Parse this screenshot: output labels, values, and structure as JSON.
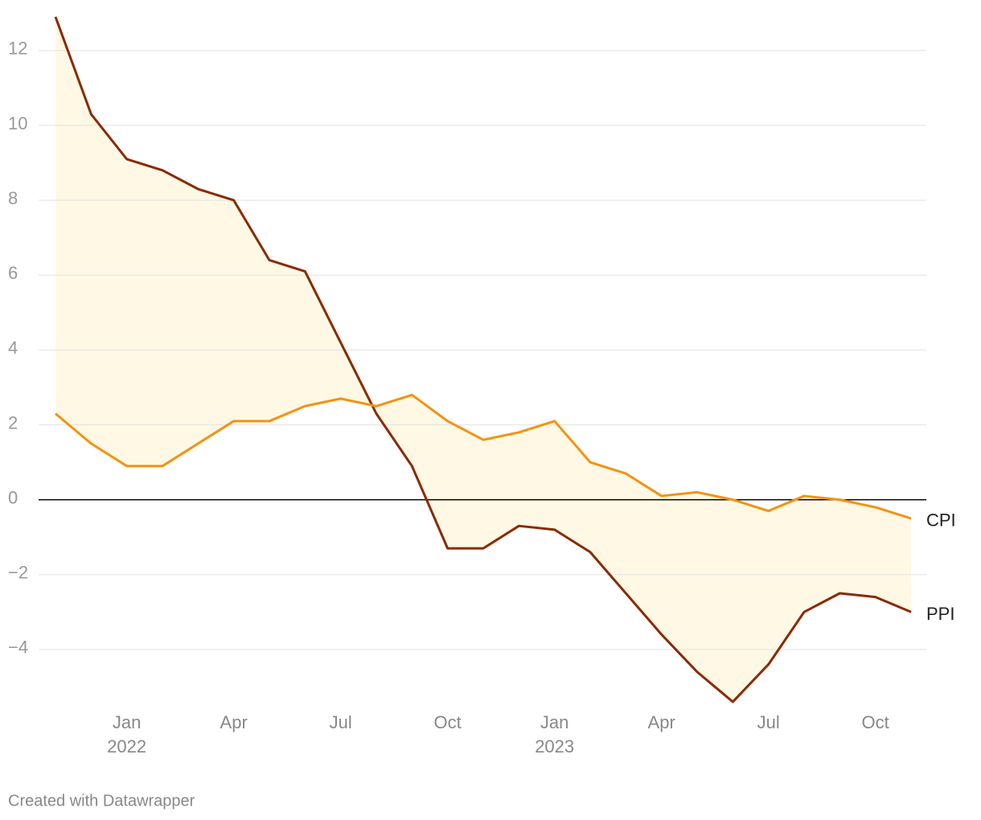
{
  "chart_data": {
    "type": "line",
    "categories": [
      null,
      null,
      "Jan",
      null,
      null,
      "Apr",
      null,
      null,
      "Jul",
      null,
      null,
      "Oct",
      null,
      null,
      "Jan",
      null,
      null,
      "Apr",
      null,
      null,
      "Jul",
      null,
      null,
      "Oct",
      null
    ],
    "category_years": [
      null,
      null,
      "2022",
      null,
      null,
      null,
      null,
      null,
      null,
      null,
      null,
      null,
      null,
      null,
      "2023",
      null,
      null,
      null,
      null,
      null,
      null,
      null,
      null,
      null,
      null
    ],
    "series": [
      {
        "name": "PPI",
        "color": "#8a2a03",
        "values": [
          12.9,
          10.3,
          9.1,
          8.8,
          8.3,
          8.0,
          6.4,
          6.1,
          4.2,
          2.3,
          0.9,
          -1.3,
          -1.3,
          -0.7,
          -0.8,
          -1.4,
          -2.5,
          -3.6,
          -4.6,
          -5.4,
          -4.4,
          -3.0,
          -2.5,
          -2.6,
          -3.0
        ]
      },
      {
        "name": "CPI",
        "color": "#f5920f",
        "values": [
          2.3,
          1.5,
          0.9,
          0.9,
          1.5,
          2.1,
          2.1,
          2.5,
          2.7,
          2.5,
          2.8,
          2.1,
          1.6,
          1.8,
          2.1,
          1.0,
          0.7,
          0.1,
          0.2,
          0.0,
          -0.3,
          0.1,
          0.0,
          -0.2,
          -0.5
        ]
      }
    ],
    "fill_between": true,
    "fill_color": "#fef8e4",
    "ylim": [
      -5.7,
      13.35
    ],
    "yticks": [
      {
        "value": -4,
        "label": "−4"
      },
      {
        "value": -2,
        "label": "−2"
      },
      0,
      2,
      4,
      6,
      8,
      10,
      12
    ],
    "grid": true,
    "footer": "Created with Datawrapper"
  }
}
